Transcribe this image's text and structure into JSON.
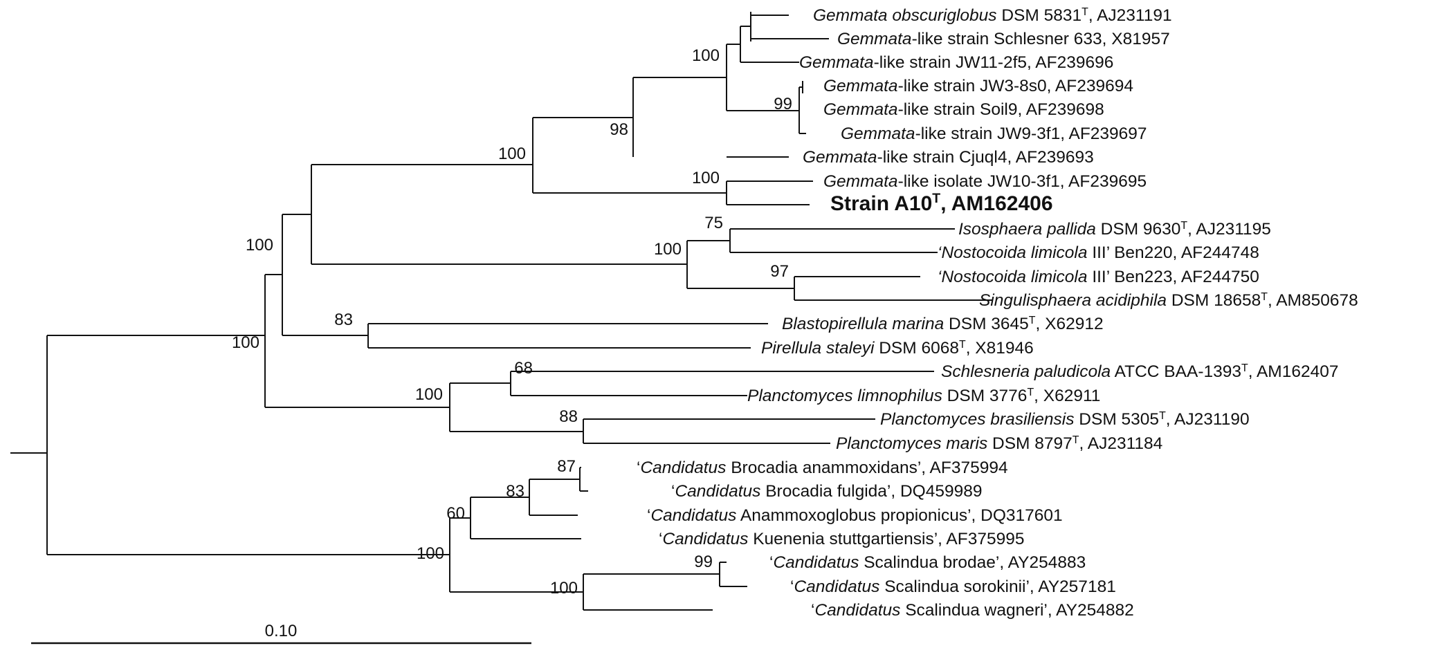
{
  "tree": {
    "leaves": [
      {
        "segments": [
          {
            "t": "Gemmata obscuriglobus",
            "i": true
          },
          {
            "t": " DSM 5831"
          },
          {
            "t": "T",
            "sup": true
          },
          {
            "t": ", AJ231191"
          }
        ]
      },
      {
        "segments": [
          {
            "t": "Gemmata",
            "i": true
          },
          {
            "t": "-like strain Schlesner 633, X81957"
          }
        ]
      },
      {
        "segments": [
          {
            "t": "Gemmata",
            "i": true
          },
          {
            "t": "-like strain JW11-2f5, AF239696"
          }
        ]
      },
      {
        "segments": [
          {
            "t": "Gemmata",
            "i": true
          },
          {
            "t": "-like strain JW3-8s0, AF239694"
          }
        ]
      },
      {
        "segments": [
          {
            "t": "Gemmata",
            "i": true
          },
          {
            "t": "-like strain Soil9, AF239698"
          }
        ]
      },
      {
        "segments": [
          {
            "t": "Gemmata",
            "i": true
          },
          {
            "t": "-like strain JW9-3f1, AF239697"
          }
        ]
      },
      {
        "segments": [
          {
            "t": "Gemmata",
            "i": true
          },
          {
            "t": "-like strain Cjuql4, AF239693"
          }
        ]
      },
      {
        "segments": [
          {
            "t": "Gemmata",
            "i": true
          },
          {
            "t": "-like isolate JW10-3f1, AF239695"
          }
        ]
      },
      {
        "bold": true,
        "segments": [
          {
            "t": "Strain A10"
          },
          {
            "t": "T",
            "sup": true
          },
          {
            "t": ", AM162406"
          }
        ]
      },
      {
        "segments": [
          {
            "t": "Isosphaera pallida",
            "i": true
          },
          {
            "t": " DSM 9630"
          },
          {
            "t": "T",
            "sup": true
          },
          {
            "t": ",  AJ231195"
          }
        ]
      },
      {
        "segments": [
          {
            "t": "‘Nostocoida limicola",
            "i": true
          },
          {
            "t": " III’ Ben220, AF244748"
          }
        ]
      },
      {
        "segments": [
          {
            "t": "‘Nostocoida limicola",
            "i": true
          },
          {
            "t": " III’ Ben223, AF244750"
          }
        ]
      },
      {
        "segments": [
          {
            "t": "Singulisphaera acidiphila",
            "i": true
          },
          {
            "t": " DSM 18658"
          },
          {
            "t": "T",
            "sup": true
          },
          {
            "t": ", AM850678"
          }
        ]
      },
      {
        "segments": [
          {
            "t": "Blastopirellula marina",
            "i": true
          },
          {
            "t": " DSM 3645"
          },
          {
            "t": "T",
            "sup": true
          },
          {
            "t": ", X62912"
          }
        ]
      },
      {
        "segments": [
          {
            "t": "Pirellula staleyi",
            "i": true
          },
          {
            "t": " DSM 6068"
          },
          {
            "t": "T",
            "sup": true
          },
          {
            "t": ", X81946"
          }
        ]
      },
      {
        "segments": [
          {
            "t": "Schlesneria paludicola",
            "i": true
          },
          {
            "t": " ATCC BAA-1393"
          },
          {
            "t": "T",
            "sup": true
          },
          {
            "t": ", AM162407"
          }
        ]
      },
      {
        "segments": [
          {
            "t": "Planctomyces limnophilus",
            "i": true
          },
          {
            "t": " DSM 3776"
          },
          {
            "t": "T",
            "sup": true
          },
          {
            "t": ", X62911"
          }
        ]
      },
      {
        "segments": [
          {
            "t": "Planctomyces brasiliensis",
            "i": true
          },
          {
            "t": " DSM 5305"
          },
          {
            "t": "T",
            "sup": true
          },
          {
            "t": ", AJ231190"
          }
        ]
      },
      {
        "segments": [
          {
            "t": "Planctomyces maris",
            "i": true
          },
          {
            "t": " DSM 8797"
          },
          {
            "t": "T",
            "sup": true
          },
          {
            "t": ", AJ231184"
          }
        ]
      },
      {
        "segments": [
          {
            "t": "‘"
          },
          {
            "t": "Candidatus",
            "i": true
          },
          {
            "t": " Brocadia anammoxidans’, AF375994"
          }
        ]
      },
      {
        "segments": [
          {
            "t": "‘"
          },
          {
            "t": "Candidatus",
            "i": true
          },
          {
            "t": " Brocadia fulgida’, DQ459989"
          }
        ]
      },
      {
        "segments": [
          {
            "t": "‘"
          },
          {
            "t": "Candidatus",
            "i": true
          },
          {
            "t": " Anammoxoglobus propionicus’, DQ317601"
          }
        ]
      },
      {
        "segments": [
          {
            "t": "‘"
          },
          {
            "t": "Candidatus",
            "i": true
          },
          {
            "t": " Kuenenia stuttgartiensis’, AF375995"
          }
        ]
      },
      {
        "segments": [
          {
            "t": "‘"
          },
          {
            "t": "Candidatus",
            "i": true
          },
          {
            "t": " Scalindua brodae’, AY254883"
          }
        ]
      },
      {
        "segments": [
          {
            "t": "‘"
          },
          {
            "t": "Candidatus",
            "i": true
          },
          {
            "t": " Scalindua sorokinii’, AY257181"
          }
        ]
      },
      {
        "segments": [
          {
            "t": "‘"
          },
          {
            "t": "Candidatus",
            "i": true
          },
          {
            "t": " Scalindua wagneri’, AY254882"
          }
        ]
      }
    ],
    "bootstrap_values": [
      "100",
      "99",
      "98",
      "100",
      "100",
      "75",
      "97",
      "100",
      "100",
      "83",
      "68",
      "88",
      "100",
      "100",
      "87",
      "83",
      "60",
      "100",
      "99",
      "100"
    ],
    "scale_bar": {
      "label": "0.10"
    }
  }
}
